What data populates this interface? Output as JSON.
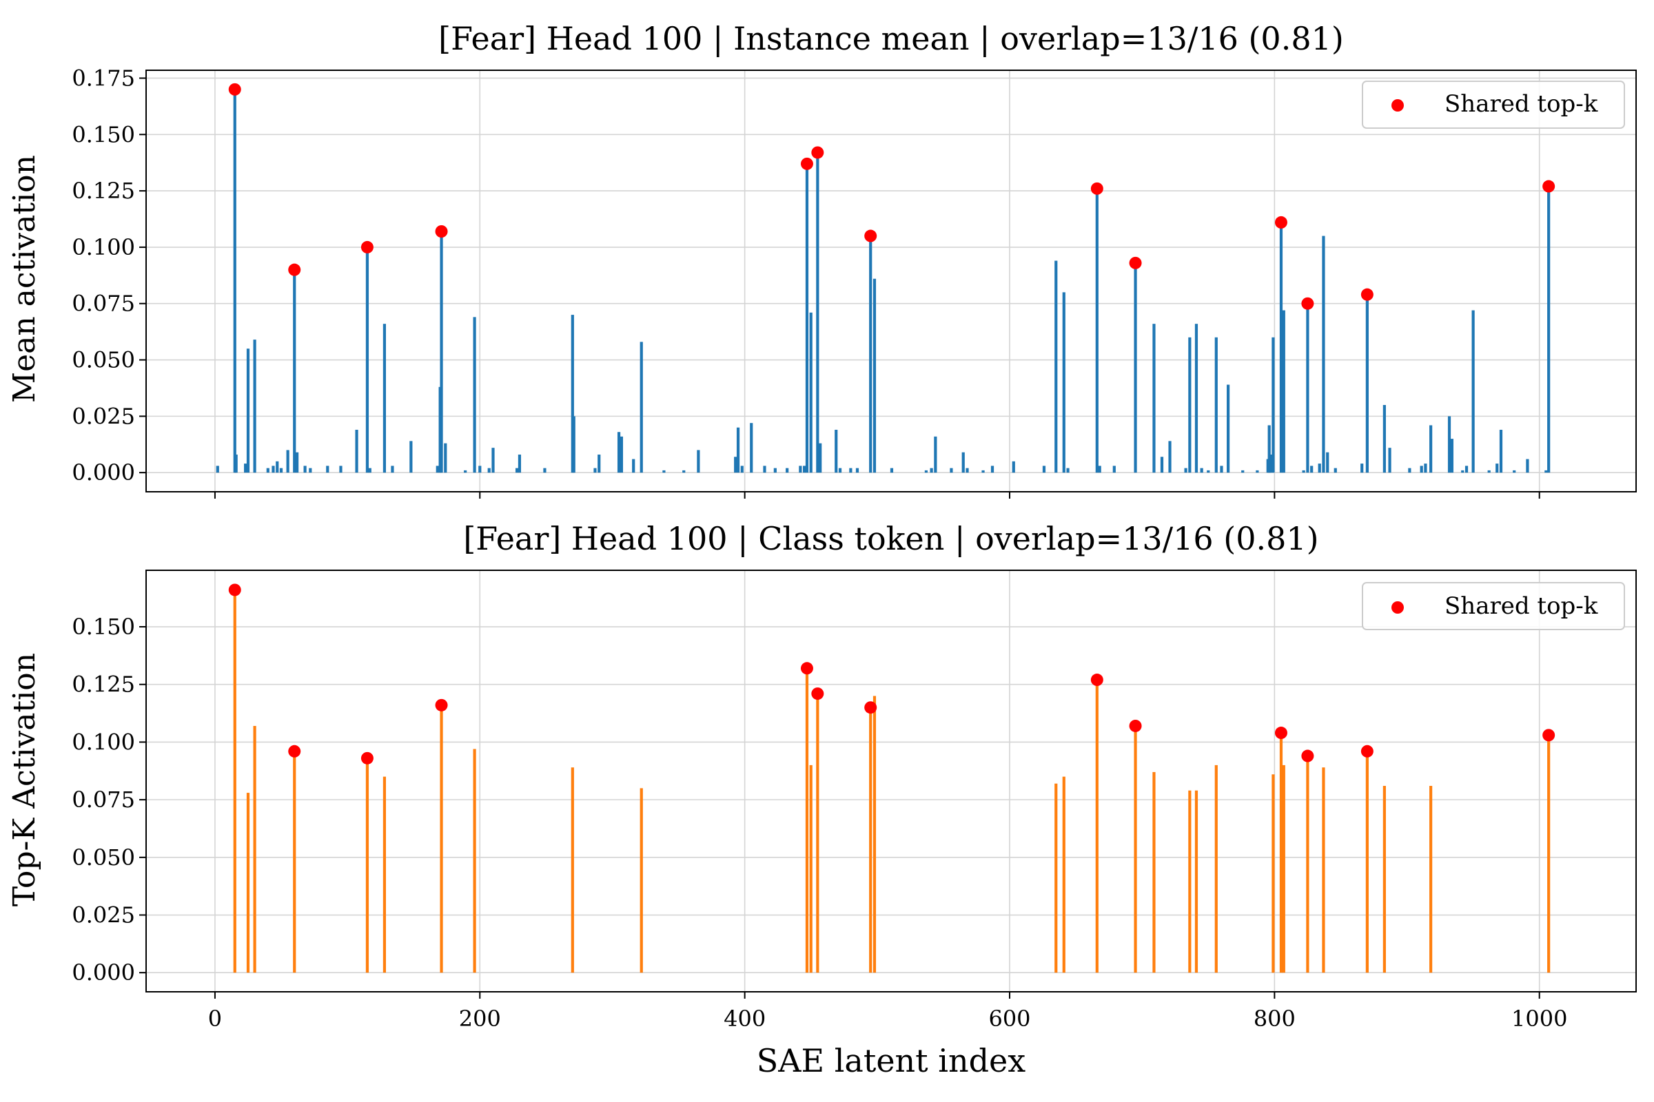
{
  "chart_data": [
    {
      "type": "bar",
      "title": "[Fear] Head 100 | Instance mean | overlap=13/16 (0.81)",
      "xlabel": "",
      "ylabel": "Mean activation",
      "xlim": [
        -52,
        1073
      ],
      "ylim": [
        -0.0085,
        0.1785
      ],
      "yticks": [
        0.0,
        0.025,
        0.05,
        0.075,
        0.1,
        0.125,
        0.15,
        0.175
      ],
      "ytick_labels": [
        "0.000",
        "0.025",
        "0.050",
        "0.075",
        "0.100",
        "0.125",
        "0.150",
        "0.175"
      ],
      "xticks": [
        0,
        200,
        400,
        600,
        800,
        1000
      ],
      "xtick_labels": [],
      "grid": true,
      "legend": {
        "label": "Shared top-k",
        "location": "top-right",
        "marker_color": "#ff0000"
      },
      "bar_color": "#1f77b4",
      "series": [
        {
          "name": "activation",
          "points": [
            [
              2,
              0.003
            ],
            [
              15,
              0.17
            ],
            [
              16,
              0.008
            ],
            [
              23,
              0.004
            ],
            [
              25,
              0.055
            ],
            [
              30,
              0.059
            ],
            [
              40,
              0.002
            ],
            [
              44,
              0.003
            ],
            [
              47,
              0.005
            ],
            [
              50,
              0.002
            ],
            [
              55,
              0.01
            ],
            [
              60,
              0.09
            ],
            [
              62,
              0.009
            ],
            [
              68,
              0.003
            ],
            [
              72,
              0.002
            ],
            [
              85,
              0.003
            ],
            [
              95,
              0.003
            ],
            [
              107,
              0.019
            ],
            [
              115,
              0.1
            ],
            [
              117,
              0.002
            ],
            [
              128,
              0.066
            ],
            [
              134,
              0.003
            ],
            [
              148,
              0.014
            ],
            [
              168,
              0.003
            ],
            [
              170,
              0.038
            ],
            [
              171,
              0.107
            ],
            [
              174,
              0.013
            ],
            [
              189,
              0.001
            ],
            [
              196,
              0.069
            ],
            [
              200,
              0.003
            ],
            [
              207,
              0.002
            ],
            [
              210,
              0.011
            ],
            [
              228,
              0.002
            ],
            [
              230,
              0.008
            ],
            [
              249,
              0.002
            ],
            [
              270,
              0.07
            ],
            [
              271,
              0.025
            ],
            [
              287,
              0.002
            ],
            [
              290,
              0.008
            ],
            [
              305,
              0.018
            ],
            [
              307,
              0.016
            ],
            [
              316,
              0.006
            ],
            [
              322,
              0.058
            ],
            [
              339,
              0.001
            ],
            [
              354,
              0.001
            ],
            [
              365,
              0.01
            ],
            [
              393,
              0.007
            ],
            [
              395,
              0.02
            ],
            [
              398,
              0.003
            ],
            [
              405,
              0.022
            ],
            [
              415,
              0.003
            ],
            [
              423,
              0.002
            ],
            [
              432,
              0.002
            ],
            [
              442,
              0.003
            ],
            [
              445,
              0.003
            ],
            [
              447,
              0.137
            ],
            [
              450,
              0.071
            ],
            [
              455,
              0.142
            ],
            [
              457,
              0.013
            ],
            [
              469,
              0.019
            ],
            [
              472,
              0.002
            ],
            [
              480,
              0.002
            ],
            [
              485,
              0.002
            ],
            [
              495,
              0.105
            ],
            [
              498,
              0.086
            ],
            [
              511,
              0.002
            ],
            [
              537,
              0.001
            ],
            [
              541,
              0.002
            ],
            [
              544,
              0.016
            ],
            [
              556,
              0.002
            ],
            [
              565,
              0.009
            ],
            [
              568,
              0.002
            ],
            [
              580,
              0.001
            ],
            [
              587,
              0.003
            ],
            [
              603,
              0.005
            ],
            [
              626,
              0.003
            ],
            [
              635,
              0.094
            ],
            [
              641,
              0.08
            ],
            [
              644,
              0.002
            ],
            [
              666,
              0.126
            ],
            [
              668,
              0.003
            ],
            [
              679,
              0.003
            ],
            [
              695,
              0.093
            ],
            [
              709,
              0.066
            ],
            [
              715,
              0.007
            ],
            [
              721,
              0.014
            ],
            [
              733,
              0.002
            ],
            [
              736,
              0.06
            ],
            [
              741,
              0.066
            ],
            [
              745,
              0.002
            ],
            [
              750,
              0.001
            ],
            [
              756,
              0.06
            ],
            [
              760,
              0.003
            ],
            [
              765,
              0.039
            ],
            [
              776,
              0.001
            ],
            [
              787,
              0.001
            ],
            [
              795,
              0.006
            ],
            [
              796,
              0.021
            ],
            [
              797,
              0.008
            ],
            [
              799,
              0.06
            ],
            [
              805,
              0.111
            ],
            [
              807,
              0.072
            ],
            [
              822,
              0.001
            ],
            [
              825,
              0.075
            ],
            [
              828,
              0.003
            ],
            [
              834,
              0.004
            ],
            [
              837,
              0.105
            ],
            [
              840,
              0.009
            ],
            [
              846,
              0.002
            ],
            [
              866,
              0.004
            ],
            [
              870,
              0.079
            ],
            [
              883,
              0.03
            ],
            [
              887,
              0.011
            ],
            [
              902,
              0.002
            ],
            [
              911,
              0.003
            ],
            [
              914,
              0.004
            ],
            [
              918,
              0.021
            ],
            [
              932,
              0.025
            ],
            [
              934,
              0.015
            ],
            [
              942,
              0.001
            ],
            [
              945,
              0.003
            ],
            [
              950,
              0.072
            ],
            [
              962,
              0.001
            ],
            [
              968,
              0.004
            ],
            [
              971,
              0.019
            ],
            [
              981,
              0.001
            ],
            [
              991,
              0.006
            ],
            [
              1005,
              0.001
            ],
            [
              1007,
              0.127
            ]
          ]
        }
      ],
      "shared_topk": [
        [
          15,
          0.17
        ],
        [
          60,
          0.09
        ],
        [
          115,
          0.1
        ],
        [
          171,
          0.107
        ],
        [
          447,
          0.137
        ],
        [
          455,
          0.142
        ],
        [
          495,
          0.105
        ],
        [
          666,
          0.126
        ],
        [
          695,
          0.093
        ],
        [
          805,
          0.111
        ],
        [
          825,
          0.075
        ],
        [
          870,
          0.079
        ],
        [
          1007,
          0.127
        ]
      ]
    },
    {
      "type": "bar",
      "title": "[Fear] Head 100 | Class token | overlap=13/16 (0.81)",
      "xlabel": "SAE latent index",
      "ylabel": "Top-K Activation",
      "xlim": [
        -52,
        1073
      ],
      "ylim": [
        -0.0083,
        0.1745
      ],
      "yticks": [
        0.0,
        0.025,
        0.05,
        0.075,
        0.1,
        0.125,
        0.15
      ],
      "ytick_labels": [
        "0.000",
        "0.025",
        "0.050",
        "0.075",
        "0.100",
        "0.125",
        "0.150"
      ],
      "xticks": [
        0,
        200,
        400,
        600,
        800,
        1000
      ],
      "xtick_labels": [
        "0",
        "200",
        "400",
        "600",
        "800",
        "1000"
      ],
      "grid": true,
      "legend": {
        "label": "Shared top-k",
        "location": "top-right",
        "marker_color": "#ff0000"
      },
      "bar_color": "#ff7f0e",
      "series": [
        {
          "name": "activation",
          "points": [
            [
              15,
              0.166
            ],
            [
              25,
              0.078
            ],
            [
              30,
              0.107
            ],
            [
              60,
              0.096
            ],
            [
              115,
              0.093
            ],
            [
              128,
              0.085
            ],
            [
              171,
              0.116
            ],
            [
              196,
              0.097
            ],
            [
              270,
              0.089
            ],
            [
              322,
              0.08
            ],
            [
              447,
              0.132
            ],
            [
              450,
              0.09
            ],
            [
              455,
              0.121
            ],
            [
              495,
              0.115
            ],
            [
              498,
              0.12
            ],
            [
              635,
              0.082
            ],
            [
              641,
              0.085
            ],
            [
              666,
              0.127
            ],
            [
              695,
              0.107
            ],
            [
              709,
              0.087
            ],
            [
              736,
              0.079
            ],
            [
              741,
              0.079
            ],
            [
              756,
              0.09
            ],
            [
              799,
              0.086
            ],
            [
              805,
              0.104
            ],
            [
              807,
              0.09
            ],
            [
              825,
              0.094
            ],
            [
              837,
              0.089
            ],
            [
              870,
              0.096
            ],
            [
              883,
              0.081
            ],
            [
              918,
              0.081
            ],
            [
              1007,
              0.103
            ]
          ]
        }
      ],
      "shared_topk": [
        [
          15,
          0.166
        ],
        [
          60,
          0.096
        ],
        [
          115,
          0.093
        ],
        [
          171,
          0.116
        ],
        [
          447,
          0.132
        ],
        [
          455,
          0.121
        ],
        [
          495,
          0.115
        ],
        [
          666,
          0.127
        ],
        [
          695,
          0.107
        ],
        [
          805,
          0.104
        ],
        [
          825,
          0.094
        ],
        [
          870,
          0.096
        ],
        [
          1007,
          0.103
        ]
      ]
    }
  ]
}
